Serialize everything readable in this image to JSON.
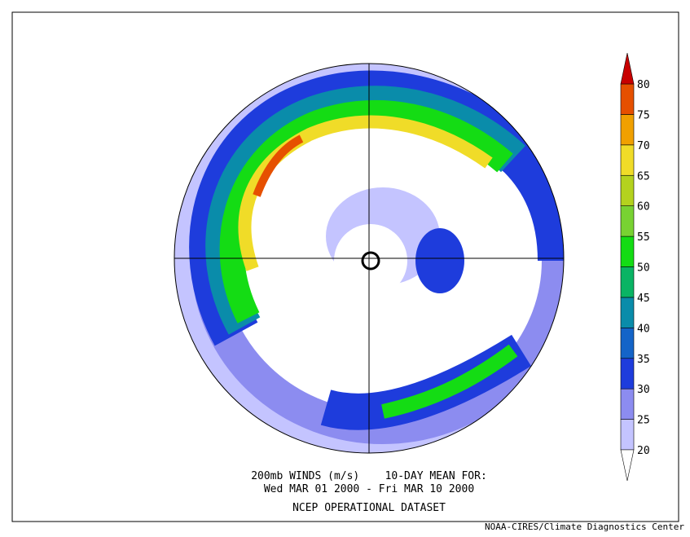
{
  "caption": {
    "line1": "200mb WINDS (m/s)    10-DAY MEAN FOR:",
    "line2": "Wed MAR 01 2000 - Fri MAR 10 2000",
    "line3": "NCEP OPERATIONAL DATASET"
  },
  "credit": "NOAA-CIRES/Climate Diagnostics Center",
  "colorbar": {
    "levels": [
      20,
      25,
      30,
      35,
      40,
      45,
      50,
      55,
      60,
      65,
      70,
      75,
      80
    ],
    "colors": [
      "#ffffff",
      "#c4c4ff",
      "#8c8cf0",
      "#1e3cdc",
      "#1464c8",
      "#0a8caa",
      "#0ab464",
      "#14dc14",
      "#78d232",
      "#b4d21e",
      "#f0dc28",
      "#f0a000",
      "#e65000",
      "#c80000"
    ]
  }
}
